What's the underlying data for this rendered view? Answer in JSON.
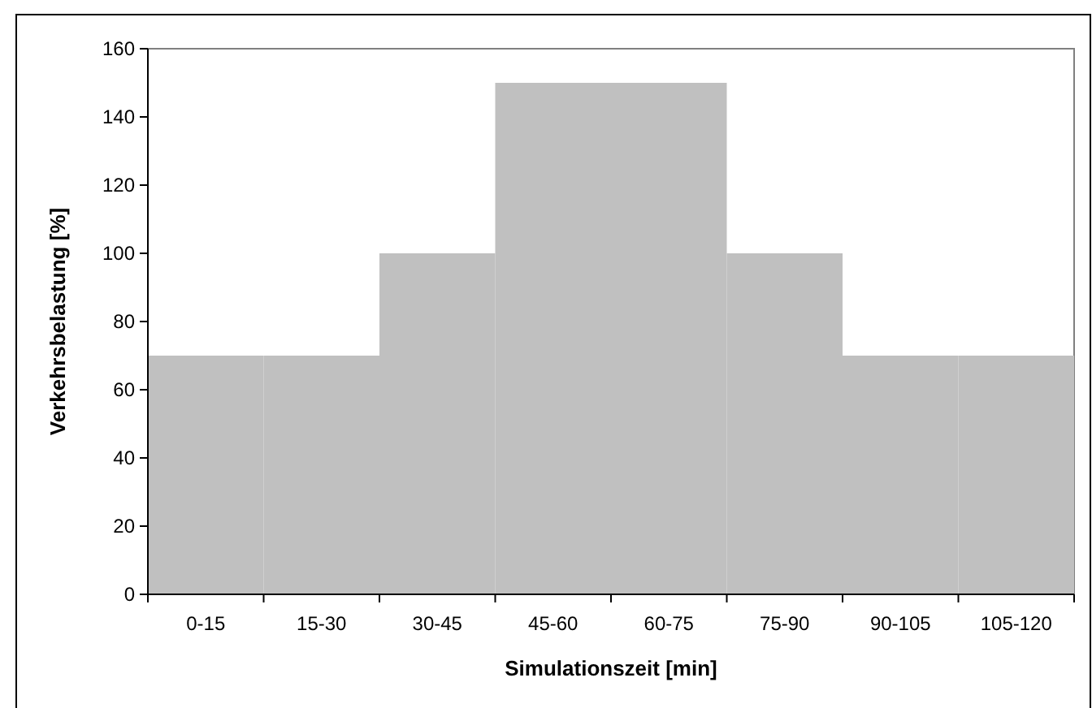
{
  "chart_data": {
    "type": "bar",
    "xlabel": "Simulationszeit [min]",
    "ylabel": "Verkehrsbelastung [%]",
    "categories": [
      "0-15",
      "15-30",
      "30-45",
      "45-60",
      "60-75",
      "75-90",
      "90-105",
      "105-120"
    ],
    "values": [
      70,
      70,
      100,
      150,
      150,
      100,
      70,
      70
    ],
    "color": "#c0c0c0",
    "ylim": [
      0,
      160
    ],
    "yticks": [
      0,
      20,
      40,
      60,
      80,
      100,
      120,
      140,
      160
    ],
    "grid": false,
    "legend": false
  }
}
